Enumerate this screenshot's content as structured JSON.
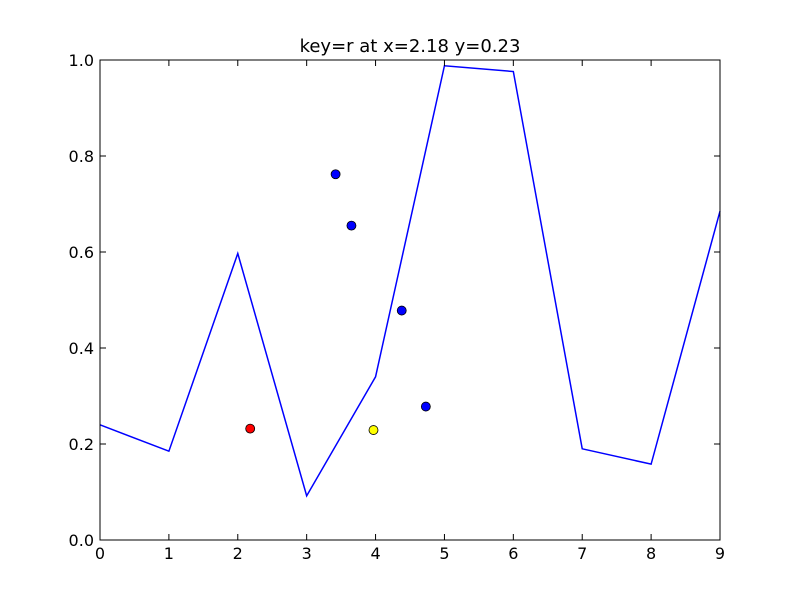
{
  "chart_data": {
    "type": "line",
    "title": "key=r at x=2.18 y=0.23",
    "xlabel": "",
    "ylabel": "",
    "xlim": [
      0,
      9
    ],
    "ylim": [
      0.0,
      1.0
    ],
    "x_ticks": [
      "0",
      "1",
      "2",
      "3",
      "4",
      "5",
      "6",
      "7",
      "8",
      "9"
    ],
    "y_ticks": [
      "0.0",
      "0.2",
      "0.4",
      "0.6",
      "0.8",
      "1.0"
    ],
    "grid": false,
    "line": {
      "color": "#0000ff",
      "x": [
        0,
        1,
        2,
        3,
        4,
        5,
        6,
        7,
        8,
        9
      ],
      "y": [
        0.24,
        0.185,
        0.597,
        0.092,
        0.34,
        0.988,
        0.976,
        0.19,
        0.158,
        0.685
      ]
    },
    "points": [
      {
        "x": 3.42,
        "y": 0.762,
        "color": "#0000ff"
      },
      {
        "x": 3.65,
        "y": 0.655,
        "color": "#0000ff"
      },
      {
        "x": 4.38,
        "y": 0.478,
        "color": "#0000ff"
      },
      {
        "x": 4.73,
        "y": 0.278,
        "color": "#0000ff"
      },
      {
        "x": 3.97,
        "y": 0.229,
        "color": "#ffff00"
      },
      {
        "x": 2.18,
        "y": 0.232,
        "color": "#ff0000"
      }
    ]
  }
}
